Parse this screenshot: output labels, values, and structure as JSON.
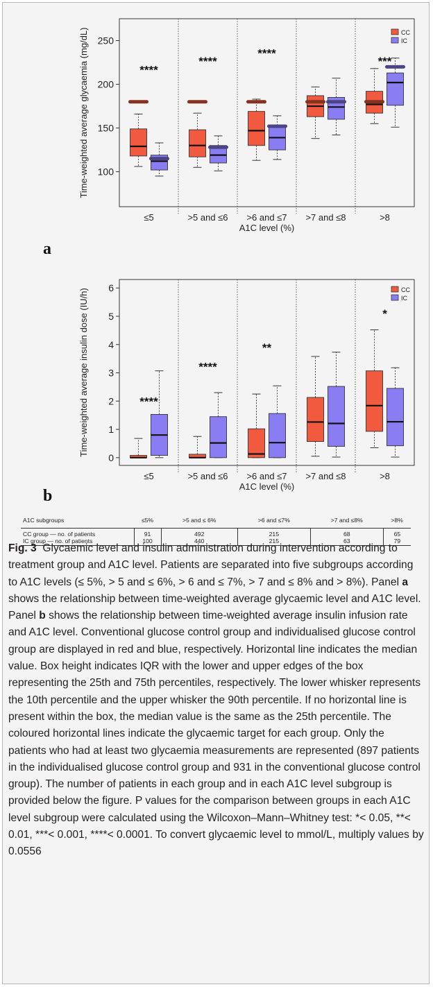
{
  "chart_data": [
    {
      "panel": "a",
      "type": "box",
      "ylabel": "Time-weighted average glycaemia (mg/dL)",
      "xlabel": "A1C level (%)",
      "categories": [
        "≤5",
        ">5 and ≤6",
        ">6 and ≤7",
        ">7 and ≤8",
        ">8"
      ],
      "ylim": [
        60,
        275
      ],
      "yticks": [
        100,
        150,
        200,
        250
      ],
      "legend_position": "top-right",
      "series": [
        {
          "name": "CC",
          "color": "#f15a3f",
          "box": [
            {
              "p10": 106,
              "q1": 118,
              "median": 129,
              "q3": 149,
              "p90": 166,
              "target": 180
            },
            {
              "p10": 105,
              "q1": 117,
              "median": 130,
              "q3": 148,
              "p90": 167,
              "target": 180
            },
            {
              "p10": 113,
              "q1": 130,
              "median": 147,
              "q3": 169,
              "p90": 183,
              "target": 180
            },
            {
              "p10": 138,
              "q1": 163,
              "median": 175,
              "q3": 187,
              "p90": 197,
              "target": 180
            },
            {
              "p10": 155,
              "q1": 167,
              "median": 177,
              "q3": 192,
              "p90": 218,
              "target": 180
            }
          ]
        },
        {
          "name": "IC",
          "color": "#8a7cf2",
          "box": [
            {
              "p10": 95,
              "q1": 102,
              "median": 112,
              "q3": 119,
              "p90": 133,
              "target": 115
            },
            {
              "p10": 101,
              "q1": 110,
              "median": 119,
              "q3": 130,
              "p90": 141,
              "target": 128
            },
            {
              "p10": 114,
              "q1": 125,
              "median": 139,
              "q3": 153,
              "p90": 164,
              "target": 152
            },
            {
              "p10": 142,
              "q1": 160,
              "median": 174,
              "q3": 185,
              "p90": 207,
              "target": 180
            },
            {
              "p10": 151,
              "q1": 176,
              "median": 202,
              "q3": 213,
              "p90": 230,
              "target": 220
            }
          ]
        }
      ],
      "significance": [
        {
          "category": 0,
          "label": "****",
          "y": 212
        },
        {
          "category": 1,
          "label": "****",
          "y": 222
        },
        {
          "category": 2,
          "label": "****",
          "y": 231
        },
        {
          "category": 4,
          "label": "***",
          "y": 222
        }
      ]
    },
    {
      "panel": "b",
      "type": "box",
      "ylabel": "Time-weighted average insulin dose (IU/h)",
      "xlabel": "A1C level (%)",
      "categories": [
        "≤5",
        ">5 and ≤6",
        ">6 and ≤7",
        ">7 and ≤8",
        ">8"
      ],
      "ylim": [
        -0.25,
        6.3
      ],
      "yticks": [
        0,
        1,
        2,
        3,
        4,
        5,
        6
      ],
      "legend_position": "top-right",
      "series": [
        {
          "name": "CC",
          "color": "#f15a3f",
          "box": [
            {
              "p10": 0,
              "q1": 0,
              "median": 0,
              "q3": 0.08,
              "p90": 0.68
            },
            {
              "p10": 0,
              "q1": 0,
              "median": 0,
              "q3": 0.12,
              "p90": 0.75
            },
            {
              "p10": 0,
              "q1": 0,
              "median": 0.13,
              "q3": 1.02,
              "p90": 2.25
            },
            {
              "p10": 0.05,
              "q1": 0.57,
              "median": 1.26,
              "q3": 2.13,
              "p90": 3.58
            },
            {
              "p10": 0.35,
              "q1": 0.93,
              "median": 1.84,
              "q3": 3.07,
              "p90": 4.52
            }
          ]
        },
        {
          "name": "IC",
          "color": "#8a7cf2",
          "box": [
            {
              "p10": 0,
              "q1": 0.08,
              "median": 0.8,
              "q3": 1.53,
              "p90": 3.07
            },
            {
              "p10": 0,
              "q1": 0,
              "median": 0.52,
              "q3": 1.45,
              "p90": 2.3
            },
            {
              "p10": 0,
              "q1": 0,
              "median": 0.53,
              "q3": 1.56,
              "p90": 2.54
            },
            {
              "p10": 0.02,
              "q1": 0.4,
              "median": 1.21,
              "q3": 2.52,
              "p90": 3.73
            },
            {
              "p10": 0.02,
              "q1": 0.42,
              "median": 1.27,
              "q3": 2.45,
              "p90": 3.18
            }
          ]
        }
      ],
      "significance": [
        {
          "category": 0,
          "label": "****",
          "y": 1.85
        },
        {
          "category": 1,
          "label": "****",
          "y": 3.08
        },
        {
          "category": 2,
          "label": "**",
          "y": 3.75
        },
        {
          "category": 4,
          "label": "*",
          "y": 4.95
        }
      ]
    }
  ],
  "panel_labels": {
    "a": "a",
    "b": "b"
  },
  "table": {
    "headers": [
      "A1C subgroups",
      "≤5%",
      ">5 and ≤ 6%",
      ">6 and ≤7%",
      ">7 and ≤8%",
      ">8%"
    ],
    "rows": [
      [
        "CC group — no. of patients",
        "91",
        "492",
        "215",
        "68",
        "65"
      ],
      [
        "IC group — no. of patients",
        "100",
        "440",
        "215",
        "63",
        "79"
      ]
    ]
  },
  "caption": {
    "label": "Fig. 3",
    "parts": [
      "Glycaemic level and insulin administration during intervention according to treatment group and A1C level. Patients are separated into five subgroups according to A1C levels (≤ 5%, > 5 and ≤ 6%, > 6 and ≤ 7%, > 7 and ≤ 8% and > 8%). Panel ",
      "a",
      " shows the relationship between time-weighted average glycaemic level and A1C level. Panel ",
      "b",
      " shows the relationship between time-weighted average insulin infusion rate and A1C level. Conventional glucose control group and individualised glucose control group are displayed in red and blue, respectively. Horizontal line indicates the median value. Box height indicates IQR with the lower and upper edges of the box representing the 25th and 75th percentiles, respectively. The lower whisker represents the 10th percentile and the upper whisker the 90th percentile. If no horizontal line is present within the box, the median value is the same as the 25th percentile. The coloured horizontal lines indicate the glycaemic target for each group. Only the patients who had at least two glycaemia measurements are represented (897 patients in the individualised glucose control group and 931 in the conventional glucose control group). The number of patients in each group and in each A1C level subgroup is provided below the figure. P values for the comparison between groups in each A1C level subgroup were calculated using the Wilcoxon–Mann–Whitney test: *< 0.05, **< 0.01, ***< 0.001, ****< 0.0001. To convert glycaemic level to mmol/L, multiply values by 0.0556"
    ]
  }
}
